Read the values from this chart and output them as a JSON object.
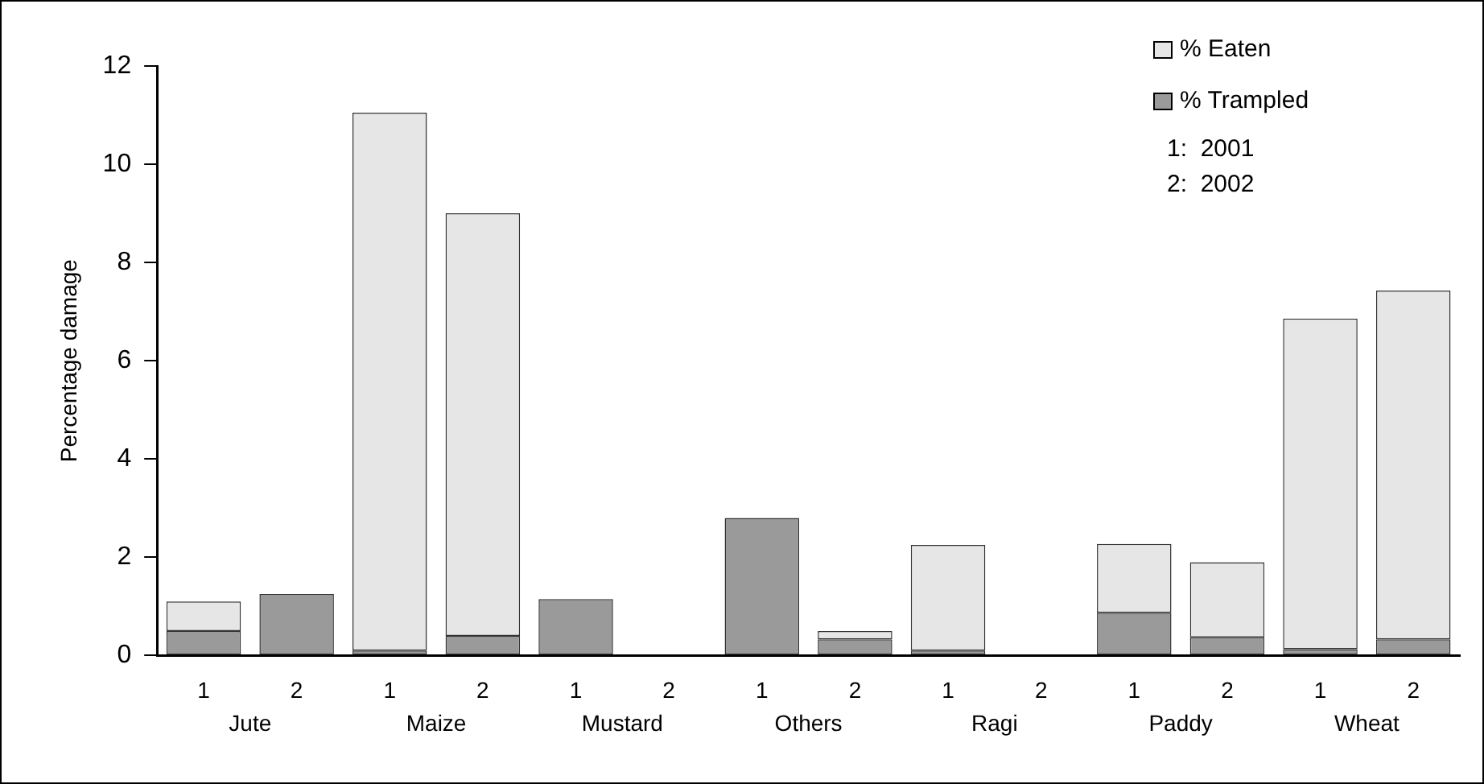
{
  "chart_data": {
    "type": "bar",
    "stacked": true,
    "ylabel": "Percentage damage",
    "categories": [
      "1",
      "2",
      "1",
      "2",
      "1",
      "2",
      "1",
      "2",
      "1",
      "2",
      "1",
      "2",
      "1",
      "2"
    ],
    "series": [
      {
        "name": "% Trampled",
        "color": "#9a9a9a",
        "values": [
          0.5,
          1.25,
          0.1,
          0.4,
          1.15,
          0,
          2.8,
          0.33,
          0.1,
          0,
          0.87,
          0.37,
          0.13,
          0.33
        ]
      },
      {
        "name": "% Eaten",
        "color": "#e6e6e6",
        "values": [
          0.6,
          0,
          10.95,
          8.6,
          0,
          0,
          0,
          0.17,
          2.15,
          0,
          1.4,
          1.53,
          6.73,
          7.1
        ]
      }
    ],
    "annotations": [
      "1:  2001",
      "2:  2002",
      "Jute",
      "Maize",
      "Mustard",
      "Others",
      "Ragi",
      "Paddy",
      "Wheat"
    ],
    "ylim": [
      0,
      12
    ],
    "yticks": [
      0,
      2,
      4,
      6,
      8,
      10,
      12
    ],
    "grid": false,
    "legend": "top right"
  }
}
